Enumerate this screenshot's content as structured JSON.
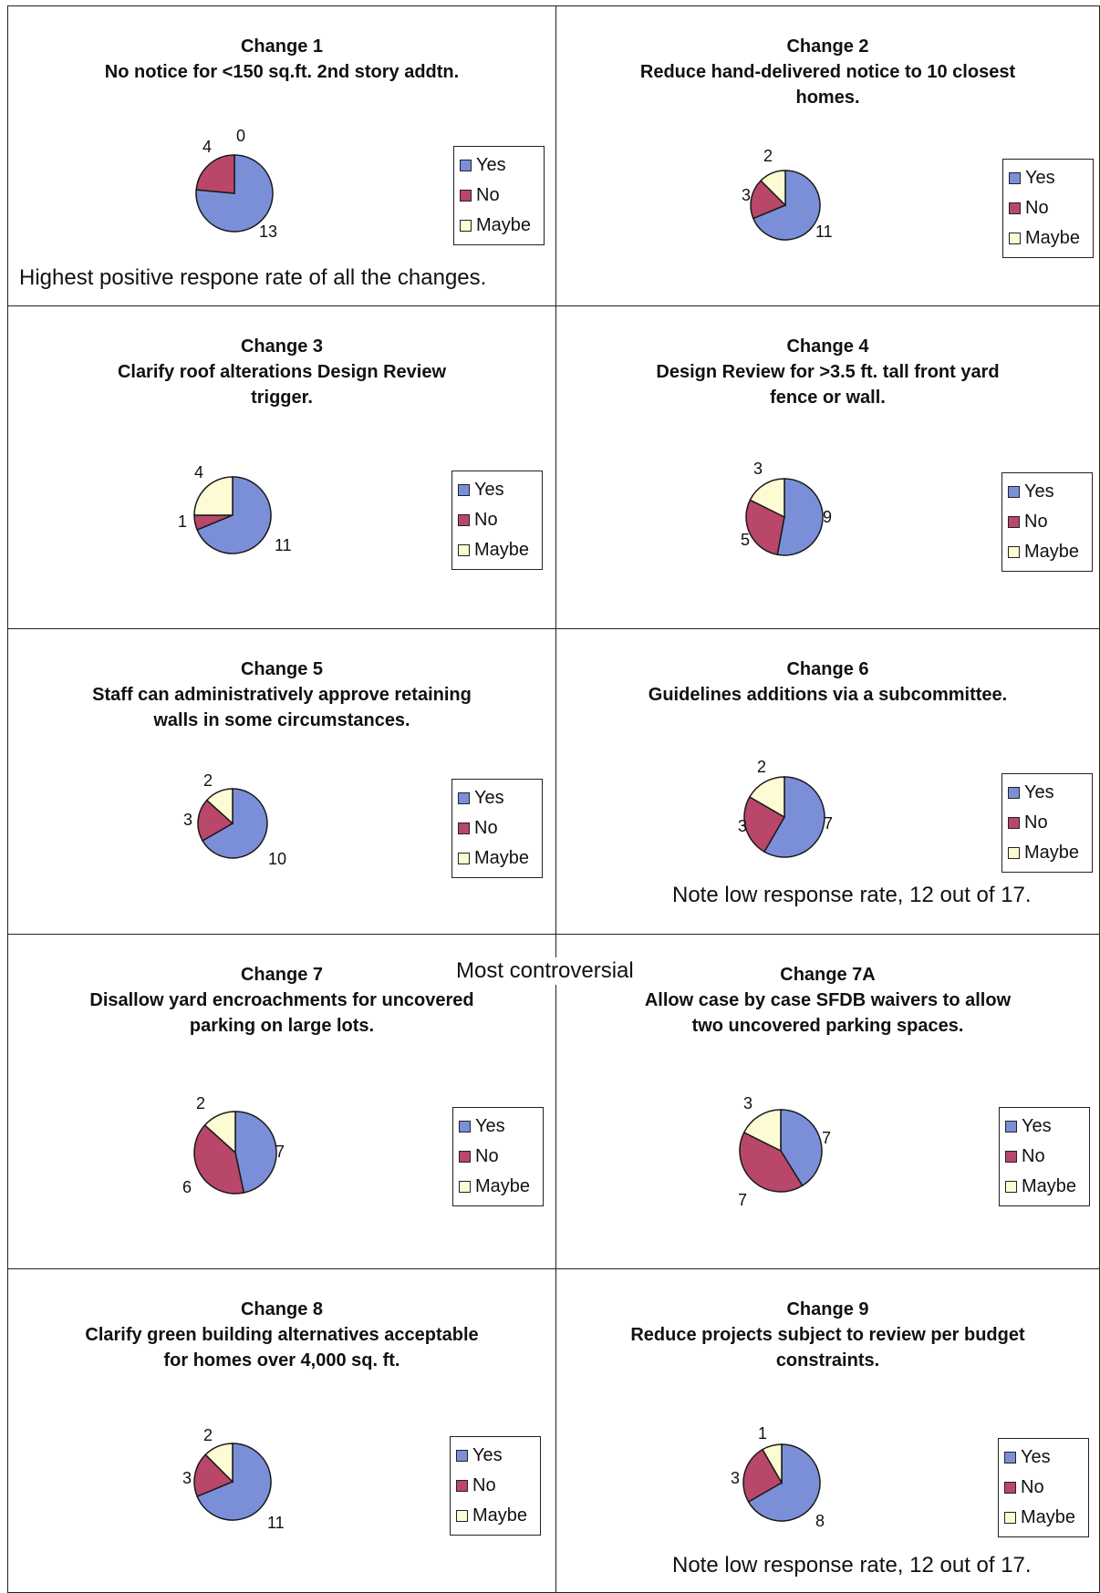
{
  "series_labels": [
    "Yes",
    "No",
    "Maybe"
  ],
  "colors": {
    "Yes": "#7b8fd9",
    "No": "#b8476a",
    "Maybe": "#fdfbd3"
  },
  "section_note": "Most controversial",
  "chart_data": [
    {
      "type": "pie",
      "title": "Change 1",
      "subtitle": [
        "No notice for <150 sq.ft. 2nd story addtn."
      ],
      "categories": [
        "Yes",
        "No",
        "Maybe"
      ],
      "values": [
        13,
        4,
        0
      ],
      "note": "Highest positive respone rate of all the changes.",
      "legend_placement": "right"
    },
    {
      "type": "pie",
      "title": "Change 2",
      "subtitle": [
        "Reduce hand-delivered notice to 10 closest",
        "homes."
      ],
      "categories": [
        "Yes",
        "No",
        "Maybe"
      ],
      "values": [
        11,
        3,
        2
      ],
      "note": "",
      "legend_placement": "right"
    },
    {
      "type": "pie",
      "title": "Change 3",
      "subtitle": [
        "Clarify roof alterations Design Review",
        "trigger."
      ],
      "categories": [
        "Yes",
        "No",
        "Maybe"
      ],
      "values": [
        11,
        1,
        4
      ],
      "note": "",
      "legend_placement": "right"
    },
    {
      "type": "pie",
      "title": "Change 4",
      "subtitle": [
        "Design Review for >3.5 ft. tall front yard",
        "fence or wall."
      ],
      "categories": [
        "Yes",
        "No",
        "Maybe"
      ],
      "values": [
        9,
        5,
        3
      ],
      "note": "",
      "legend_placement": "right"
    },
    {
      "type": "pie",
      "title": "Change 5",
      "subtitle": [
        "Staff can administratively approve retaining",
        "walls in some circumstances."
      ],
      "categories": [
        "Yes",
        "No",
        "Maybe"
      ],
      "values": [
        10,
        3,
        2
      ],
      "note": "",
      "legend_placement": "right"
    },
    {
      "type": "pie",
      "title": "Change 6",
      "subtitle": [
        "Guidelines additions via a subcommittee."
      ],
      "categories": [
        "Yes",
        "No",
        "Maybe"
      ],
      "values": [
        7,
        3,
        2
      ],
      "note": "Note low response rate, 12 out of 17.",
      "legend_placement": "right"
    },
    {
      "type": "pie",
      "title": "Change 7",
      "subtitle": [
        "Disallow yard encroachments for uncovered",
        "parking on large lots."
      ],
      "categories": [
        "Yes",
        "No",
        "Maybe"
      ],
      "values": [
        7,
        6,
        2
      ],
      "note": "",
      "legend_placement": "right"
    },
    {
      "type": "pie",
      "title": "Change 7A",
      "subtitle": [
        "Allow case by case SFDB waivers to allow",
        "two uncovered parking spaces."
      ],
      "categories": [
        "Yes",
        "No",
        "Maybe"
      ],
      "values": [
        7,
        7,
        3
      ],
      "note": "",
      "legend_placement": "right"
    },
    {
      "type": "pie",
      "title": "Change 8",
      "subtitle": [
        "Clarify green building alternatives acceptable",
        "for homes over 4,000 sq. ft."
      ],
      "categories": [
        "Yes",
        "No",
        "Maybe"
      ],
      "values": [
        11,
        3,
        2
      ],
      "note": "",
      "legend_placement": "right"
    },
    {
      "type": "pie",
      "title": "Change 9",
      "subtitle": [
        "Reduce projects subject to review per budget",
        "constraints."
      ],
      "categories": [
        "Yes",
        "No",
        "Maybe"
      ],
      "values": [
        8,
        3,
        1
      ],
      "note": "Note low response rate, 12 out of 17.",
      "legend_placement": "right"
    }
  ]
}
